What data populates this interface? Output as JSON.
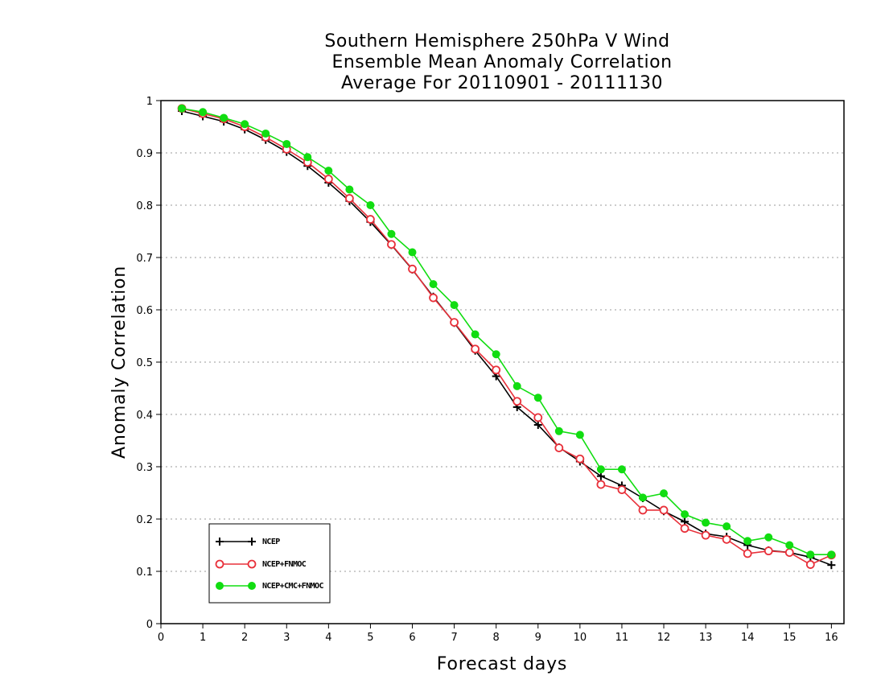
{
  "chart_data": {
    "type": "line",
    "title_lines": [
      "Southern Hemisphere 250hPa V Wind",
      "Ensemble Mean Anomaly Correlation",
      "Average For 20110901 - 20111130"
    ],
    "xlabel": "Forecast days",
    "ylabel": "Anomaly Correlation",
    "xlim": [
      0,
      16.3
    ],
    "ylim": [
      0,
      1
    ],
    "x_ticks": [
      "0",
      "1",
      "2",
      "3",
      "4",
      "5",
      "6",
      "7",
      "8",
      "9",
      "10",
      "11",
      "12",
      "13",
      "14",
      "15",
      "16"
    ],
    "y_ticks": [
      "0",
      "0.1",
      "0.2",
      "0.3",
      "0.4",
      "0.5",
      "0.6",
      "0.7",
      "0.8",
      "0.9",
      "1"
    ],
    "grid": true,
    "legend_position": "bottom-left",
    "x": [
      0.5,
      1,
      1.5,
      2,
      2.5,
      3,
      3.5,
      4,
      4.5,
      5,
      5.5,
      6,
      6.5,
      7,
      7.5,
      8,
      8.5,
      9,
      9.5,
      10,
      10.5,
      11,
      11.5,
      12,
      12.5,
      13,
      13.5,
      14,
      14.5,
      15,
      15.5,
      16
    ],
    "series": [
      {
        "name": "NCEP",
        "color": "#000000",
        "marker": "plus",
        "values": [
          0.98,
          0.97,
          0.96,
          0.945,
          0.925,
          0.902,
          0.875,
          0.843,
          0.808,
          0.768,
          0.724,
          0.677,
          0.625,
          0.575,
          0.522,
          0.473,
          0.414,
          0.38,
          0.337,
          0.31,
          0.282,
          0.264,
          0.24,
          0.215,
          0.195,
          0.172,
          0.166,
          0.15,
          0.14,
          0.136,
          0.127,
          0.112
        ]
      },
      {
        "name": "NCEP+FNMOC",
        "color": "#e8303a",
        "marker": "open-circle",
        "values": [
          0.985,
          0.975,
          0.965,
          0.95,
          0.93,
          0.907,
          0.882,
          0.85,
          0.813,
          0.773,
          0.725,
          0.678,
          0.623,
          0.576,
          0.525,
          0.485,
          0.425,
          0.394,
          0.336,
          0.315,
          0.266,
          0.256,
          0.217,
          0.217,
          0.182,
          0.169,
          0.161,
          0.134,
          0.139,
          0.136,
          0.113,
          0.131
        ]
      },
      {
        "name": "NCEP+CMC+FNMOC",
        "color": "#11dd11",
        "marker": "filled-circle",
        "values": [
          0.985,
          0.978,
          0.967,
          0.955,
          0.937,
          0.917,
          0.892,
          0.866,
          0.83,
          0.8,
          0.745,
          0.71,
          0.649,
          0.609,
          0.553,
          0.515,
          0.454,
          0.432,
          0.368,
          0.361,
          0.295,
          0.295,
          0.241,
          0.249,
          0.209,
          0.193,
          0.186,
          0.158,
          0.165,
          0.15,
          0.132,
          0.132
        ]
      }
    ]
  }
}
